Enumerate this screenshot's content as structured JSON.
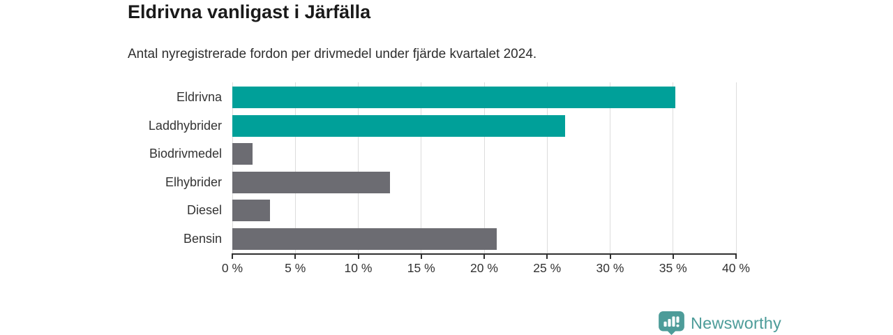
{
  "chart_data": {
    "type": "bar",
    "orientation": "horizontal",
    "title": "Eldrivna vanligast i Järfälla",
    "subtitle": "Antal nyregistrerade fordon per drivmedel under fjärde kvartalet 2024.",
    "categories": [
      "Eldrivna",
      "Laddhybrider",
      "Biodrivmedel",
      "Elhybrider",
      "Diesel",
      "Bensin"
    ],
    "values": [
      35.2,
      26.4,
      1.6,
      12.5,
      3.0,
      21.0
    ],
    "unit": "%",
    "bar_colors": [
      "#00a099",
      "#00a099",
      "#6c6c72",
      "#6c6c72",
      "#6c6c72",
      "#6c6c72"
    ],
    "accent_color": "#00a099",
    "neutral_color": "#6c6c72",
    "xlim": [
      0,
      40
    ],
    "x_tick_values": [
      0,
      5,
      10,
      15,
      20,
      25,
      30,
      35,
      40
    ],
    "x_tick_labels": [
      "0 %",
      "5 %",
      "10 %",
      "15 %",
      "20 %",
      "25 %",
      "30 %",
      "35 %",
      "40 %"
    ],
    "grid": "vertical",
    "legend": "none",
    "xlabel": "",
    "ylabel": ""
  },
  "footer": {
    "brand": "Newsworthy",
    "brand_color": "#4d9c99"
  }
}
